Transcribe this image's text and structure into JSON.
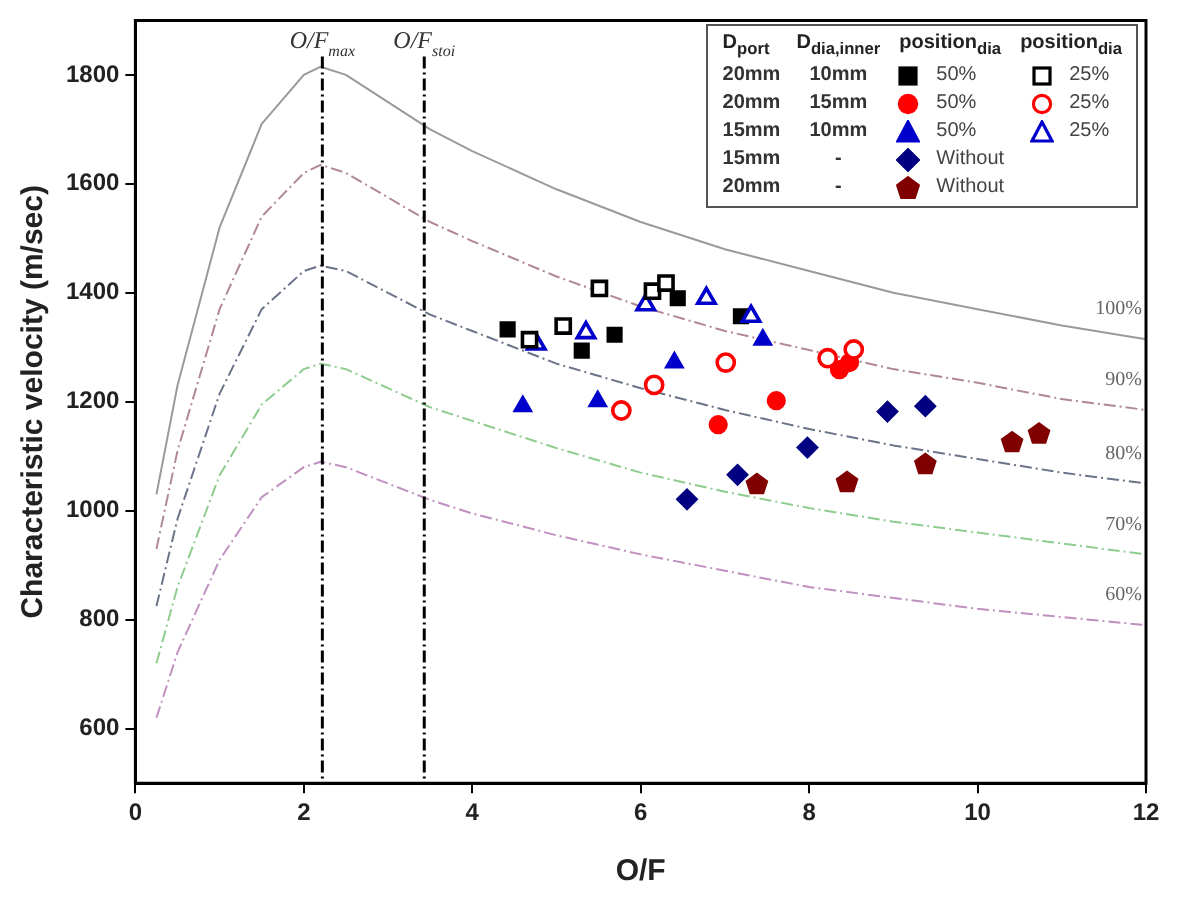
{
  "chart_data": {
    "type": "scatter",
    "xlabel": "O/F",
    "ylabel": "Characteristic velocity (m/sec)",
    "xlim": [
      0,
      12
    ],
    "xticks": [
      0,
      2,
      4,
      6,
      8,
      10,
      12
    ],
    "ylim": [
      500,
      1900
    ],
    "yticks": [
      600,
      800,
      1000,
      1200,
      1400,
      1600,
      1800
    ],
    "grid": false,
    "legend": "top right",
    "annotations": [
      "D$_{port}$",
      "D$_{dia,inner}$",
      "position$_{dia}$",
      "position$_{dia}$",
      "20mm",
      "10mm",
      "20mm",
      "15mm",
      "15mm",
      "10mm",
      "15mm",
      "-",
      "20mm",
      "-"
    ],
    "ref_lines": [
      {
        "axis": "x",
        "value": 2.22,
        "label": "O/F$_{max}$",
        "color": "#000000",
        "line_style": "dashed"
      },
      {
        "axis": "x",
        "value": 3.43,
        "label": "O/F$_{stoi}$",
        "color": "#000000",
        "line_style": "dashed"
      }
    ],
    "series": [
      {
        "name": "50%",
        "color": "#000000",
        "marker": "square",
        "x": [
          4.42,
          5.3,
          5.69,
          6.44,
          7.19
        ],
        "values": [
          1333,
          1294,
          1323,
          1390,
          1357
        ]
      },
      {
        "name": "50%",
        "color": "#ff0000",
        "marker": "circle",
        "x": [
          6.92,
          7.61,
          8.36,
          8.48
        ],
        "values": [
          1158,
          1202,
          1259,
          1272
        ]
      },
      {
        "name": "50%",
        "color": "#0000cc",
        "marker": "triangle",
        "x": [
          4.6,
          5.49,
          6.4,
          7.45
        ],
        "values": [
          1192,
          1201,
          1272,
          1314
        ]
      },
      {
        "name": "Without",
        "color": "#000080",
        "marker": "diamond",
        "x": [
          6.55,
          7.15,
          7.98,
          8.93,
          9.38
        ],
        "values": [
          1021,
          1066,
          1116,
          1182,
          1192
        ]
      },
      {
        "name": "Without",
        "color": "#800000",
        "x": [
          7.38,
          8.45,
          9.38,
          10.41,
          10.73
        ],
        "values": [
          1048,
          1052,
          1085,
          1125,
          1141
        ]
      },
      {
        "name": "25%",
        "color": "#000000",
        "marker": "square-open",
        "x": [
          4.68,
          5.08,
          5.51,
          6.14,
          6.3
        ],
        "values": [
          1314,
          1339,
          1408,
          1403,
          1418
        ]
      },
      {
        "name": "25%",
        "color": "#ff0000",
        "marker": "circle-open",
        "x": [
          5.77,
          6.16,
          7.01,
          8.22,
          8.53
        ],
        "values": [
          1184,
          1231,
          1272,
          1280,
          1296
        ]
      },
      {
        "name": "25%",
        "color": "#0000cc",
        "marker": "triangle-open",
        "x": [
          4.76,
          5.35,
          6.06,
          6.78,
          7.31
        ],
        "values": [
          1306,
          1327,
          1378,
          1390,
          1357
        ]
      },
      {
        "name": "100%",
        "type": "line",
        "color": "#9a9a9a",
        "line_style": "solid",
        "marker": "none",
        "x": [
          0.25,
          0.5,
          1,
          1.5,
          2,
          2.2,
          2.5,
          3,
          3.5,
          4,
          5,
          6,
          7,
          8,
          9,
          10,
          11,
          12
        ],
        "values": [
          1030,
          1230,
          1520,
          1710,
          1800,
          1815,
          1800,
          1750,
          1700,
          1660,
          1590,
          1530,
          1480,
          1440,
          1400,
          1370,
          1340,
          1315
        ]
      },
      {
        "name": "90%",
        "type": "line",
        "color": "#b08890",
        "line_style": "dashed",
        "marker": "none",
        "x": [
          0.25,
          0.5,
          1,
          1.5,
          2,
          2.2,
          2.5,
          3,
          3.5,
          4,
          5,
          6,
          7,
          8,
          9,
          10,
          11,
          12
        ],
        "values": [
          930,
          1110,
          1370,
          1540,
          1620,
          1635,
          1620,
          1575,
          1530,
          1495,
          1430,
          1375,
          1330,
          1295,
          1260,
          1235,
          1205,
          1185
        ]
      },
      {
        "name": "80%",
        "type": "line",
        "color": "#6a7388",
        "line_style": "dashed",
        "marker": "none",
        "x": [
          0.25,
          0.5,
          1,
          1.5,
          2,
          2.2,
          2.5,
          3,
          3.5,
          4,
          5,
          6,
          7,
          8,
          9,
          10,
          11,
          12
        ],
        "values": [
          825,
          985,
          1215,
          1370,
          1440,
          1450,
          1440,
          1400,
          1360,
          1330,
          1270,
          1225,
          1185,
          1150,
          1120,
          1095,
          1070,
          1050
        ]
      },
      {
        "name": "70%",
        "type": "line",
        "color": "#8fcc8f",
        "line_style": "dashed",
        "marker": "none",
        "x": [
          0.25,
          0.5,
          1,
          1.5,
          2,
          2.2,
          2.5,
          3,
          3.5,
          4,
          5,
          6,
          7,
          8,
          9,
          10,
          11,
          12
        ],
        "values": [
          720,
          860,
          1065,
          1195,
          1260,
          1270,
          1260,
          1225,
          1190,
          1165,
          1115,
          1070,
          1035,
          1005,
          980,
          960,
          940,
          920
        ]
      },
      {
        "name": "60%",
        "type": "line",
        "color": "#c090c0",
        "line_style": "dashed",
        "marker": "none",
        "x": [
          0.25,
          0.5,
          1,
          1.5,
          2,
          2.2,
          2.5,
          3,
          3.5,
          4,
          5,
          6,
          7,
          8,
          9,
          10,
          11,
          12
        ],
        "values": [
          620,
          740,
          910,
          1025,
          1080,
          1090,
          1080,
          1050,
          1020,
          995,
          955,
          920,
          890,
          860,
          840,
          820,
          805,
          790
        ]
      }
    ]
  }
}
